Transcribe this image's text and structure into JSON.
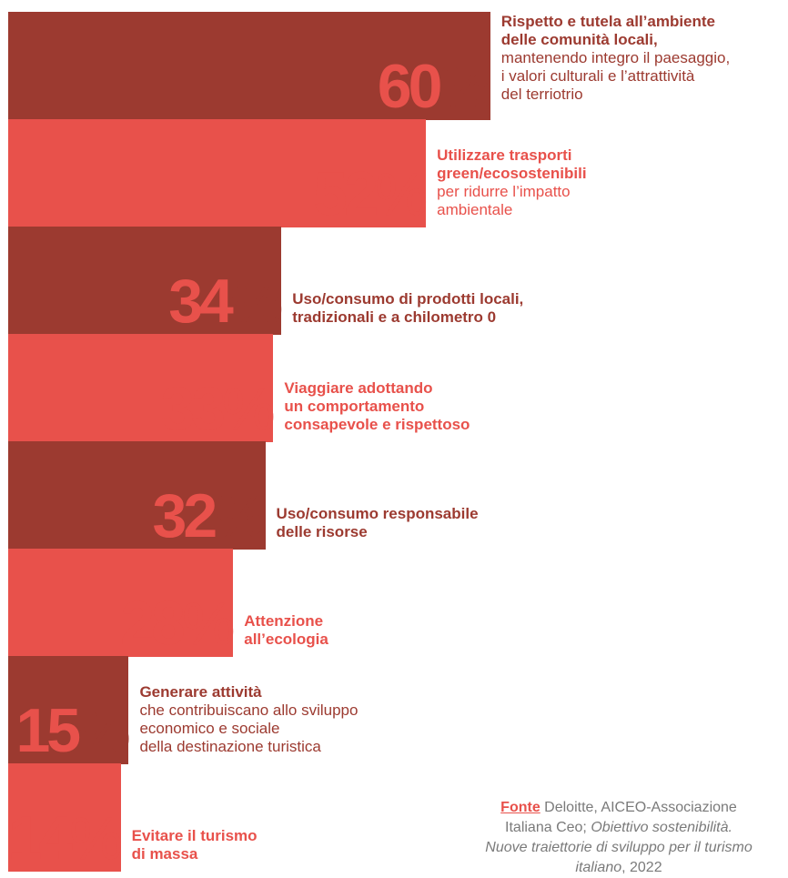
{
  "colors": {
    "dark": "#9c3a30",
    "light": "#e8514b",
    "source_text": "#7a7a7a"
  },
  "chart_data": {
    "type": "bar",
    "orientation": "horizontal",
    "unit": "%",
    "items": [
      {
        "value": 60,
        "bold": [
          "Rispetto e tutela all’ambiente",
          "delle comunità locali,"
        ],
        "normal": [
          "mantenendo integro il paesaggio,",
          "i valori culturali e l’attrattività",
          "del terriotrio"
        ],
        "tone": "dark"
      },
      {
        "value": 52,
        "bold": [
          "Utilizzare trasporti",
          "green/ecosostenibili"
        ],
        "normal": [
          "per ridurre l’impatto",
          "ambientale"
        ],
        "tone": "light"
      },
      {
        "value": 34,
        "bold": [
          "Uso/consumo di prodotti locali,",
          "tradizionali e a chilometro 0"
        ],
        "normal": [],
        "tone": "dark"
      },
      {
        "value": 33,
        "bold": [
          "Viaggiare adottando",
          "un comportamento",
          "consapevole e rispettoso"
        ],
        "normal": [],
        "tone": "light"
      },
      {
        "value": 32,
        "bold": [
          "Uso/consumo responsabile",
          "delle risorse"
        ],
        "normal": [],
        "tone": "dark"
      },
      {
        "value": 28,
        "bold": [
          "Attenzione",
          "all’ecologia"
        ],
        "normal": [],
        "tone": "light"
      },
      {
        "value": 15,
        "bold": [
          "Generare attività"
        ],
        "normal": [
          "che contribuiscano allo sviluppo",
          "economico e sociale",
          "della destinazione turistica"
        ],
        "tone": "dark"
      },
      {
        "value": 14,
        "bold": [
          "Evitare il turismo",
          "di massa"
        ],
        "normal": [],
        "tone": "light"
      }
    ]
  },
  "source": {
    "label": "Fonte",
    "authors_line1": "Deloitte, AICEO-Associazione",
    "authors_line2": "Italiana Ceo;",
    "title_line1": "Obiettivo sostenibilità.",
    "title_line2": "Nuove traiettorie di sviluppo per il turismo",
    "title_line3": "italiano",
    "year": "2022"
  }
}
